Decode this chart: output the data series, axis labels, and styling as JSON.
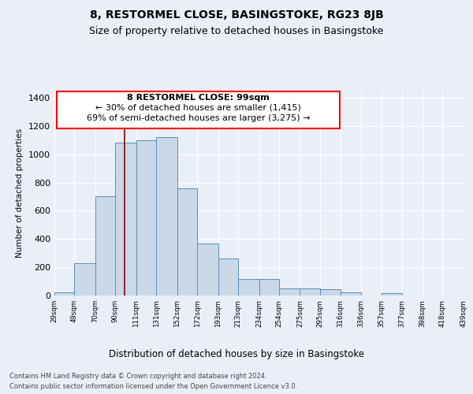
{
  "title": "8, RESTORMEL CLOSE, BASINGSTOKE, RG23 8JB",
  "subtitle": "Size of property relative to detached houses in Basingstoke",
  "xlabel": "Distribution of detached houses by size in Basingstoke",
  "ylabel": "Number of detached properties",
  "footnote1": "Contains HM Land Registry data © Crown copyright and database right 2024.",
  "footnote2": "Contains public sector information licensed under the Open Government Licence v3.0.",
  "annotation_line1": "8 RESTORMEL CLOSE: 99sqm",
  "annotation_line2": "← 30% of detached houses are smaller (1,415)",
  "annotation_line3": "69% of semi-detached houses are larger (3,275) →",
  "bar_values": [
    20,
    230,
    700,
    1080,
    1100,
    1120,
    760,
    370,
    260,
    115,
    115,
    50,
    50,
    45,
    20,
    0,
    18,
    0,
    0,
    0
  ],
  "bar_edges": [
    29,
    49,
    70,
    90,
    111,
    131,
    152,
    172,
    193,
    213,
    234,
    254,
    275,
    295,
    316,
    336,
    357,
    377,
    398,
    418,
    439
  ],
  "tick_labels": [
    "29sqm",
    "49sqm",
    "70sqm",
    "90sqm",
    "111sqm",
    "131sqm",
    "152sqm",
    "172sqm",
    "193sqm",
    "213sqm",
    "234sqm",
    "254sqm",
    "275sqm",
    "295sqm",
    "316sqm",
    "336sqm",
    "357sqm",
    "377sqm",
    "398sqm",
    "418sqm",
    "439sqm"
  ],
  "bar_color": "#c9d9e8",
  "bar_edge_color": "#5b8db8",
  "bg_color": "#eaeff7",
  "plot_bg_color": "#eaeff7",
  "grid_color": "#ffffff",
  "red_line_x": 99,
  "ylim": [
    0,
    1450
  ],
  "xlim": [
    29,
    439
  ],
  "title_fontsize": 10,
  "subtitle_fontsize": 9,
  "annotation_fontsize": 8,
  "yticks": [
    0,
    200,
    400,
    600,
    800,
    1000,
    1200,
    1400
  ]
}
